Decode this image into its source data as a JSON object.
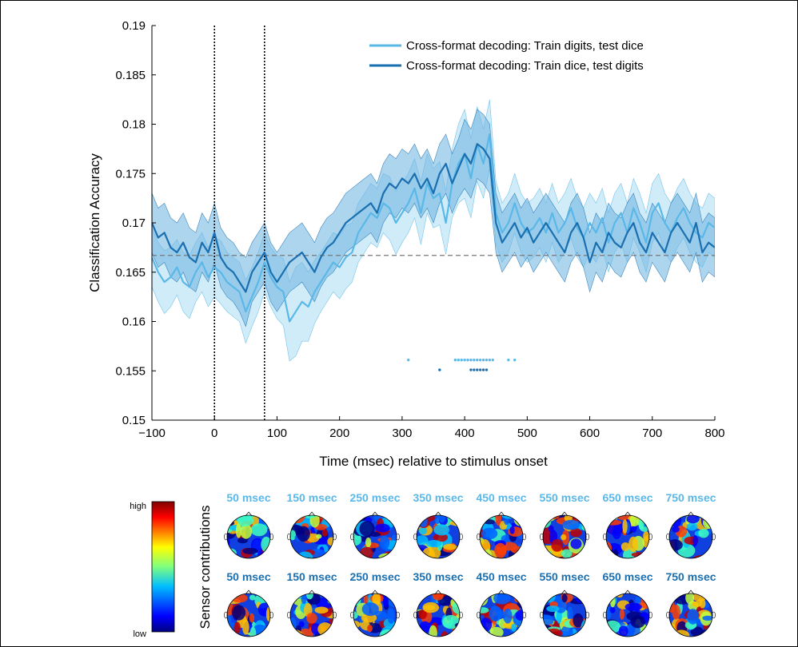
{
  "chart_data": {
    "type": "line",
    "xlabel": "Time (msec) relative to stimulus onset",
    "ylabel": "Classification Accuracy",
    "xlim": [
      -100,
      800
    ],
    "ylim": [
      0.15,
      0.19
    ],
    "x_ticks": [
      "−100",
      "0",
      "100",
      "200",
      "300",
      "400",
      "500",
      "600",
      "700",
      "800"
    ],
    "x_tick_values": [
      -100,
      0,
      100,
      200,
      300,
      400,
      500,
      600,
      700,
      800
    ],
    "y_ticks": [
      "0.15",
      "0.155",
      "0.16",
      "0.165",
      "0.17",
      "0.175",
      "0.18",
      "0.185",
      "0.19"
    ],
    "y_tick_values": [
      0.15,
      0.155,
      0.16,
      0.165,
      0.17,
      0.175,
      0.18,
      0.185,
      0.19
    ],
    "chance_level": 0.1667,
    "vertical_markers": [
      0,
      80
    ],
    "legend_position": "top-right",
    "series": [
      {
        "name": "Cross-format decoding: Train digits, test dice",
        "color": "#5ab8e8",
        "band_color": "#a9dcf4",
        "x": [
          -100,
          -90,
          -80,
          -70,
          -60,
          -50,
          -40,
          -30,
          -20,
          -10,
          0,
          10,
          20,
          30,
          40,
          50,
          60,
          70,
          80,
          90,
          100,
          110,
          120,
          130,
          140,
          150,
          160,
          170,
          180,
          190,
          200,
          210,
          220,
          230,
          240,
          250,
          260,
          270,
          280,
          290,
          300,
          310,
          320,
          330,
          340,
          350,
          360,
          370,
          380,
          390,
          400,
          410,
          420,
          430,
          440,
          450,
          460,
          470,
          480,
          490,
          500,
          510,
          520,
          530,
          540,
          550,
          560,
          570,
          580,
          590,
          600,
          610,
          620,
          630,
          640,
          650,
          660,
          670,
          680,
          690,
          700,
          710,
          720,
          730,
          740,
          750,
          760,
          770,
          780,
          790,
          800
        ],
        "y": [
          0.1665,
          0.165,
          0.164,
          0.1645,
          0.1655,
          0.164,
          0.1635,
          0.165,
          0.166,
          0.1645,
          0.1655,
          0.165,
          0.164,
          0.1635,
          0.163,
          0.161,
          0.1625,
          0.164,
          0.166,
          0.1645,
          0.1635,
          0.163,
          0.16,
          0.161,
          0.162,
          0.1615,
          0.163,
          0.164,
          0.165,
          0.166,
          0.1655,
          0.1665,
          0.167,
          0.169,
          0.17,
          0.171,
          0.1705,
          0.172,
          0.1715,
          0.17,
          0.171,
          0.172,
          0.1735,
          0.171,
          0.174,
          0.1725,
          0.173,
          0.17,
          0.174,
          0.176,
          0.177,
          0.1745,
          0.178,
          0.176,
          0.179,
          0.171,
          0.169,
          0.17,
          0.172,
          0.17,
          0.169,
          0.1695,
          0.1705,
          0.169,
          0.171,
          0.169,
          0.17,
          0.1715,
          0.1695,
          0.1685,
          0.17,
          0.169,
          0.1705,
          0.168,
          0.17,
          0.171,
          0.169,
          0.1715,
          0.17,
          0.168,
          0.171,
          0.172,
          0.17,
          0.169,
          0.1705,
          0.1715,
          0.17,
          0.169,
          0.1685,
          0.17,
          0.1695
        ],
        "ci": [
          0.003,
          0.003,
          0.0032,
          0.003,
          0.0028,
          0.003,
          0.0032,
          0.003,
          0.003,
          0.003,
          0.003,
          0.0032,
          0.003,
          0.003,
          0.003,
          0.0032,
          0.003,
          0.003,
          0.003,
          0.003,
          0.0032,
          0.0034,
          0.004,
          0.0045,
          0.004,
          0.0035,
          0.0032,
          0.003,
          0.003,
          0.003,
          0.0032,
          0.0032,
          0.003,
          0.003,
          0.003,
          0.003,
          0.003,
          0.003,
          0.0032,
          0.0032,
          0.003,
          0.003,
          0.003,
          0.0032,
          0.003,
          0.003,
          0.0032,
          0.0032,
          0.0035,
          0.004,
          0.0045,
          0.004,
          0.0038,
          0.0035,
          0.0035,
          0.0032,
          0.003,
          0.003,
          0.003,
          0.003,
          0.003,
          0.003,
          0.003,
          0.003,
          0.003,
          0.003,
          0.003,
          0.003,
          0.003,
          0.003,
          0.003,
          0.003,
          0.003,
          0.003,
          0.003,
          0.003,
          0.003,
          0.003,
          0.003,
          0.003,
          0.003,
          0.003,
          0.003,
          0.003,
          0.003,
          0.003,
          0.003,
          0.003,
          0.003,
          0.003,
          0.003
        ],
        "significant_times": [
          310,
          385,
          390,
          395,
          400,
          405,
          410,
          415,
          420,
          425,
          430,
          435,
          440,
          445,
          470,
          480
        ],
        "significant_y": 0.1561
      },
      {
        "name": "Cross-format decoding: Train dice, test digits",
        "color": "#1a6fb0",
        "band_color": "#6cb3e0",
        "x": [
          -100,
          -90,
          -80,
          -70,
          -60,
          -50,
          -40,
          -30,
          -20,
          -10,
          0,
          10,
          20,
          30,
          40,
          50,
          60,
          70,
          80,
          90,
          100,
          110,
          120,
          130,
          140,
          150,
          160,
          170,
          180,
          190,
          200,
          210,
          220,
          230,
          240,
          250,
          260,
          270,
          280,
          290,
          300,
          310,
          320,
          330,
          340,
          350,
          360,
          370,
          380,
          390,
          400,
          410,
          420,
          430,
          440,
          450,
          460,
          470,
          480,
          490,
          500,
          510,
          520,
          530,
          540,
          550,
          560,
          570,
          580,
          590,
          600,
          610,
          620,
          630,
          640,
          650,
          660,
          670,
          680,
          690,
          700,
          710,
          720,
          730,
          740,
          750,
          760,
          770,
          780,
          790,
          800
        ],
        "y": [
          0.17,
          0.1685,
          0.169,
          0.1675,
          0.167,
          0.168,
          0.1665,
          0.166,
          0.168,
          0.167,
          0.169,
          0.1665,
          0.1655,
          0.165,
          0.164,
          0.163,
          0.165,
          0.166,
          0.167,
          0.165,
          0.164,
          0.165,
          0.166,
          0.1665,
          0.167,
          0.166,
          0.165,
          0.1665,
          0.1675,
          0.168,
          0.169,
          0.17,
          0.1705,
          0.171,
          0.1715,
          0.172,
          0.171,
          0.173,
          0.174,
          0.1735,
          0.1745,
          0.174,
          0.175,
          0.1735,
          0.1745,
          0.173,
          0.175,
          0.176,
          0.174,
          0.1755,
          0.177,
          0.176,
          0.178,
          0.1775,
          0.1765,
          0.17,
          0.168,
          0.169,
          0.17,
          0.1685,
          0.1695,
          0.168,
          0.169,
          0.17,
          0.169,
          0.168,
          0.167,
          0.169,
          0.17,
          0.1685,
          0.166,
          0.168,
          0.167,
          0.169,
          0.168,
          0.1675,
          0.169,
          0.17,
          0.168,
          0.167,
          0.169,
          0.168,
          0.167,
          0.169,
          0.17,
          0.169,
          0.168,
          0.17,
          0.167,
          0.168,
          0.1675
        ],
        "ci": [
          0.003,
          0.003,
          0.003,
          0.003,
          0.003,
          0.003,
          0.003,
          0.003,
          0.003,
          0.003,
          0.003,
          0.003,
          0.003,
          0.003,
          0.003,
          0.0035,
          0.003,
          0.003,
          0.003,
          0.003,
          0.003,
          0.003,
          0.003,
          0.003,
          0.003,
          0.003,
          0.003,
          0.003,
          0.003,
          0.003,
          0.003,
          0.003,
          0.003,
          0.003,
          0.003,
          0.003,
          0.003,
          0.003,
          0.003,
          0.003,
          0.003,
          0.003,
          0.003,
          0.003,
          0.003,
          0.003,
          0.003,
          0.003,
          0.003,
          0.003,
          0.0035,
          0.0035,
          0.0035,
          0.0035,
          0.0035,
          0.003,
          0.003,
          0.003,
          0.003,
          0.003,
          0.003,
          0.003,
          0.003,
          0.003,
          0.003,
          0.003,
          0.003,
          0.003,
          0.003,
          0.003,
          0.003,
          0.003,
          0.003,
          0.003,
          0.003,
          0.003,
          0.003,
          0.003,
          0.003,
          0.003,
          0.003,
          0.003,
          0.003,
          0.003,
          0.003,
          0.003,
          0.003,
          0.003,
          0.003,
          0.003,
          0.003
        ],
        "significant_times": [
          360,
          410,
          415,
          420,
          425,
          430,
          435
        ],
        "significant_y": 0.1551
      }
    ]
  },
  "topomaps": {
    "colorbar": {
      "high_label": "high",
      "low_label": "low",
      "title": "Sensor contributions"
    },
    "rows": [
      {
        "label_color": "#5ab8e8",
        "labels": [
          "50 msec",
          "150 msec",
          "250 msec",
          "350 msec",
          "450 msec",
          "550 msec",
          "650 msec",
          "750 msec"
        ]
      },
      {
        "label_color": "#1a6fb0",
        "labels": [
          "50 msec",
          "150 msec",
          "250 msec",
          "350 msec",
          "450 msec",
          "550 msec",
          "650 msec",
          "750 msec"
        ]
      }
    ]
  }
}
